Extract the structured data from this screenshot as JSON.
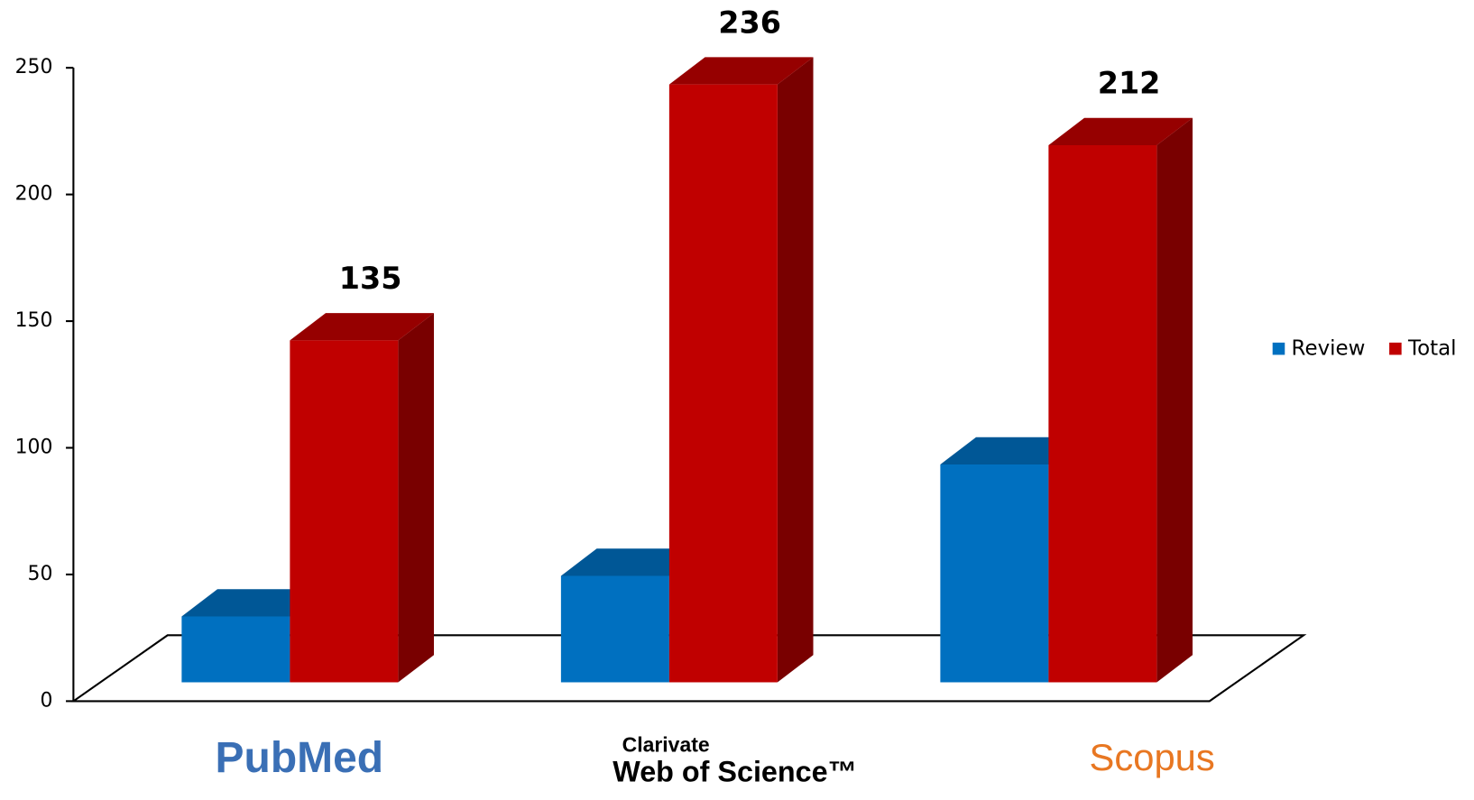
{
  "chart_data": {
    "type": "bar3d",
    "categories": [
      "PubMed",
      "Web of Science™",
      "Scopus"
    ],
    "category_prefixes": [
      null,
      "Clarivate",
      null
    ],
    "series": [
      {
        "name": "Review",
        "color": "#0070c0",
        "values": [
          26,
          42,
          86
        ],
        "show_labels": false
      },
      {
        "name": "Total",
        "color": "#c00000",
        "values": [
          135,
          236,
          212
        ],
        "show_labels": true
      }
    ],
    "ylim": [
      0,
      250
    ],
    "yticks": [
      0,
      50,
      100,
      150,
      200,
      250
    ],
    "legend": "right"
  }
}
